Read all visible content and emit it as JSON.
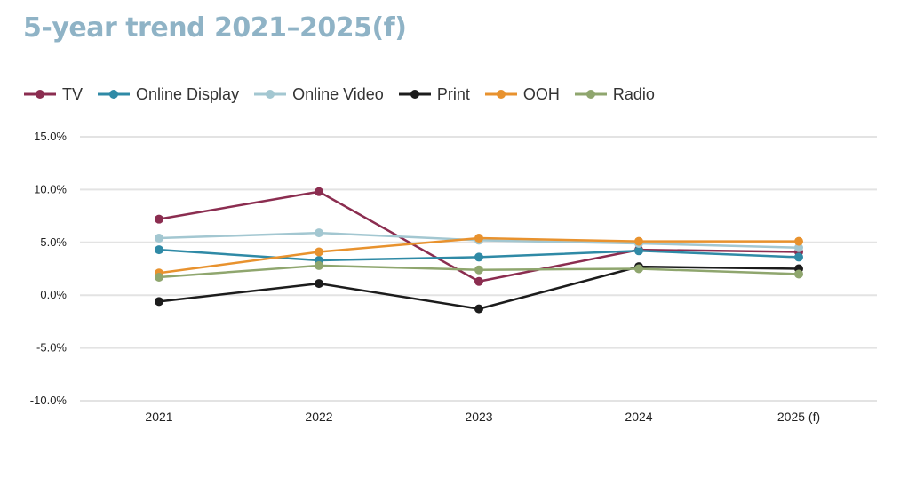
{
  "chart_data": {
    "type": "line",
    "title": "5-year trend 2021–2025(f)",
    "categories": [
      "2021",
      "2022",
      "2023",
      "2024",
      "2025 (f)"
    ],
    "ylim": [
      -10,
      15
    ],
    "yticks": [
      15,
      10,
      5,
      0,
      -5,
      -10
    ],
    "ytick_labels": [
      "15.0%",
      "10.0%",
      "5.0%",
      "0.0%",
      "-5.0%",
      "-10.0%"
    ],
    "grid": true,
    "legend_position": "top-left",
    "series": [
      {
        "name": "TV",
        "color": "#8b2d50",
        "values": [
          7.2,
          9.8,
          1.3,
          4.3,
          4.1
        ]
      },
      {
        "name": "Online Display",
        "color": "#2f8aa6",
        "values": [
          4.3,
          3.3,
          3.6,
          4.2,
          3.6
        ]
      },
      {
        "name": "Online Video",
        "color": "#a3c7d1",
        "values": [
          5.4,
          5.9,
          5.2,
          4.9,
          4.5
        ]
      },
      {
        "name": "Print",
        "color": "#1c1c1c",
        "values": [
          -0.6,
          1.1,
          -1.3,
          2.7,
          2.5
        ]
      },
      {
        "name": "OOH",
        "color": "#e8922e",
        "values": [
          2.1,
          4.1,
          5.4,
          5.1,
          5.1
        ]
      },
      {
        "name": "Radio",
        "color": "#8fa66e",
        "values": [
          1.7,
          2.8,
          2.4,
          2.5,
          2.0
        ]
      }
    ]
  }
}
